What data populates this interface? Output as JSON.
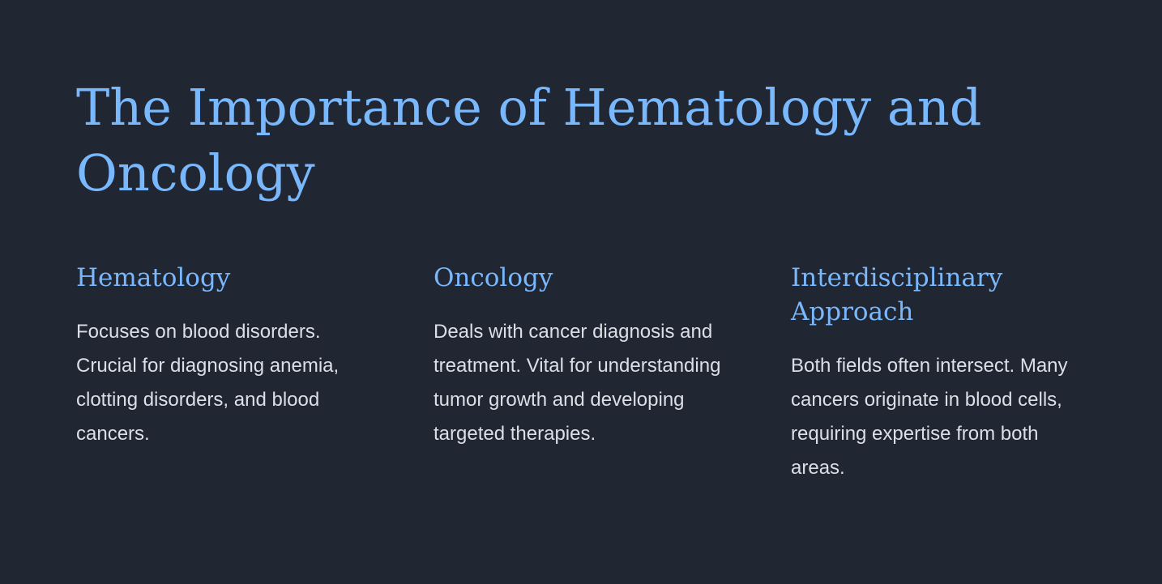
{
  "slide": {
    "title": "The Importance of Hematology and Oncology",
    "columns": [
      {
        "heading": "Hematology",
        "body": "Focuses on blood disorders. Crucial for diagnosing anemia, clotting disorders, and blood cancers."
      },
      {
        "heading": "Oncology",
        "body": "Deals with cancer diagnosis and treatment. Vital for understanding tumor growth and developing targeted therapies."
      },
      {
        "heading": "Interdisciplinary Approach",
        "body": "Both fields often intersect. Many cancers originate in blood cells, requiring expertise from both areas."
      }
    ]
  },
  "colors": {
    "background": "#212633",
    "accent": "#79b8fc",
    "body_text": "#dcdfe6"
  }
}
